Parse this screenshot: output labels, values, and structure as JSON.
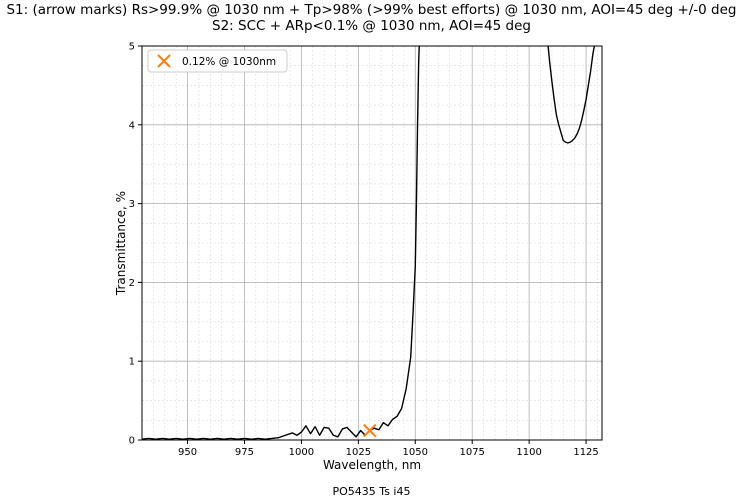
{
  "chart_data": {
    "type": "line",
    "title": "S1: (arrow marks) Rs>99.9% @ 1030 nm + Tp>98% (>99% best efforts) @ 1030 nm, AOI=45 deg +/-0 deg",
    "subtitle": "S2: SCC + ARp<0.1% @ 1030 nm, AOI=45 deg",
    "xlabel": "Wavelength, nm",
    "ylabel": "Transmittance, %",
    "caption": "PO5435 Ts i45",
    "xlim": [
      930,
      1132
    ],
    "ylim": [
      0,
      5
    ],
    "xticks": [
      950,
      975,
      1000,
      1025,
      1050,
      1075,
      1100,
      1125
    ],
    "yticks": [
      0,
      1,
      2,
      3,
      4,
      5
    ],
    "grid": true,
    "legend_position": "top-left",
    "line_color": "#000000",
    "marker_color": "#ff7f0e",
    "series": [
      {
        "x": [
          930,
          933,
          936,
          939,
          942,
          945,
          948,
          951,
          954,
          957,
          960,
          963,
          966,
          969,
          972,
          975,
          978,
          981,
          984,
          987,
          990,
          993,
          996,
          998,
          1000,
          1002,
          1004,
          1006,
          1008,
          1010,
          1012,
          1014,
          1016,
          1018,
          1020,
          1022,
          1024,
          1026,
          1028,
          1030,
          1032,
          1034,
          1036,
          1038,
          1040,
          1042,
          1044,
          1046,
          1048,
          1049,
          1050,
          1050.5,
          1051,
          1051.5,
          1052
        ],
        "y": [
          0.01,
          0.02,
          0.01,
          0.02,
          0.01,
          0.02,
          0.01,
          0.02,
          0.01,
          0.02,
          0.01,
          0.02,
          0.01,
          0.02,
          0.01,
          0.02,
          0.01,
          0.02,
          0.01,
          0.02,
          0.03,
          0.06,
          0.09,
          0.06,
          0.1,
          0.18,
          0.08,
          0.17,
          0.06,
          0.16,
          0.15,
          0.06,
          0.04,
          0.14,
          0.16,
          0.1,
          0.04,
          0.12,
          0.06,
          0.12,
          0.15,
          0.13,
          0.22,
          0.18,
          0.26,
          0.3,
          0.4,
          0.65,
          1.05,
          1.6,
          2.2,
          3.0,
          4.0,
          4.8,
          5.2
        ]
      },
      {
        "x": [
          1108,
          1109,
          1110,
          1111,
          1112,
          1113,
          1114,
          1115,
          1116,
          1117,
          1118,
          1119,
          1120,
          1121,
          1122,
          1123,
          1124,
          1125,
          1126,
          1127,
          1128,
          1129,
          1130
        ],
        "y": [
          5.1,
          4.8,
          4.55,
          4.32,
          4.12,
          4.0,
          3.9,
          3.8,
          3.78,
          3.77,
          3.78,
          3.8,
          3.83,
          3.88,
          3.95,
          4.05,
          4.18,
          4.32,
          4.5,
          4.68,
          4.9,
          5.05,
          5.15
        ]
      }
    ],
    "marker": {
      "x": 1030,
      "y": 0.12,
      "label": "0.12% @ 1030nm"
    }
  }
}
